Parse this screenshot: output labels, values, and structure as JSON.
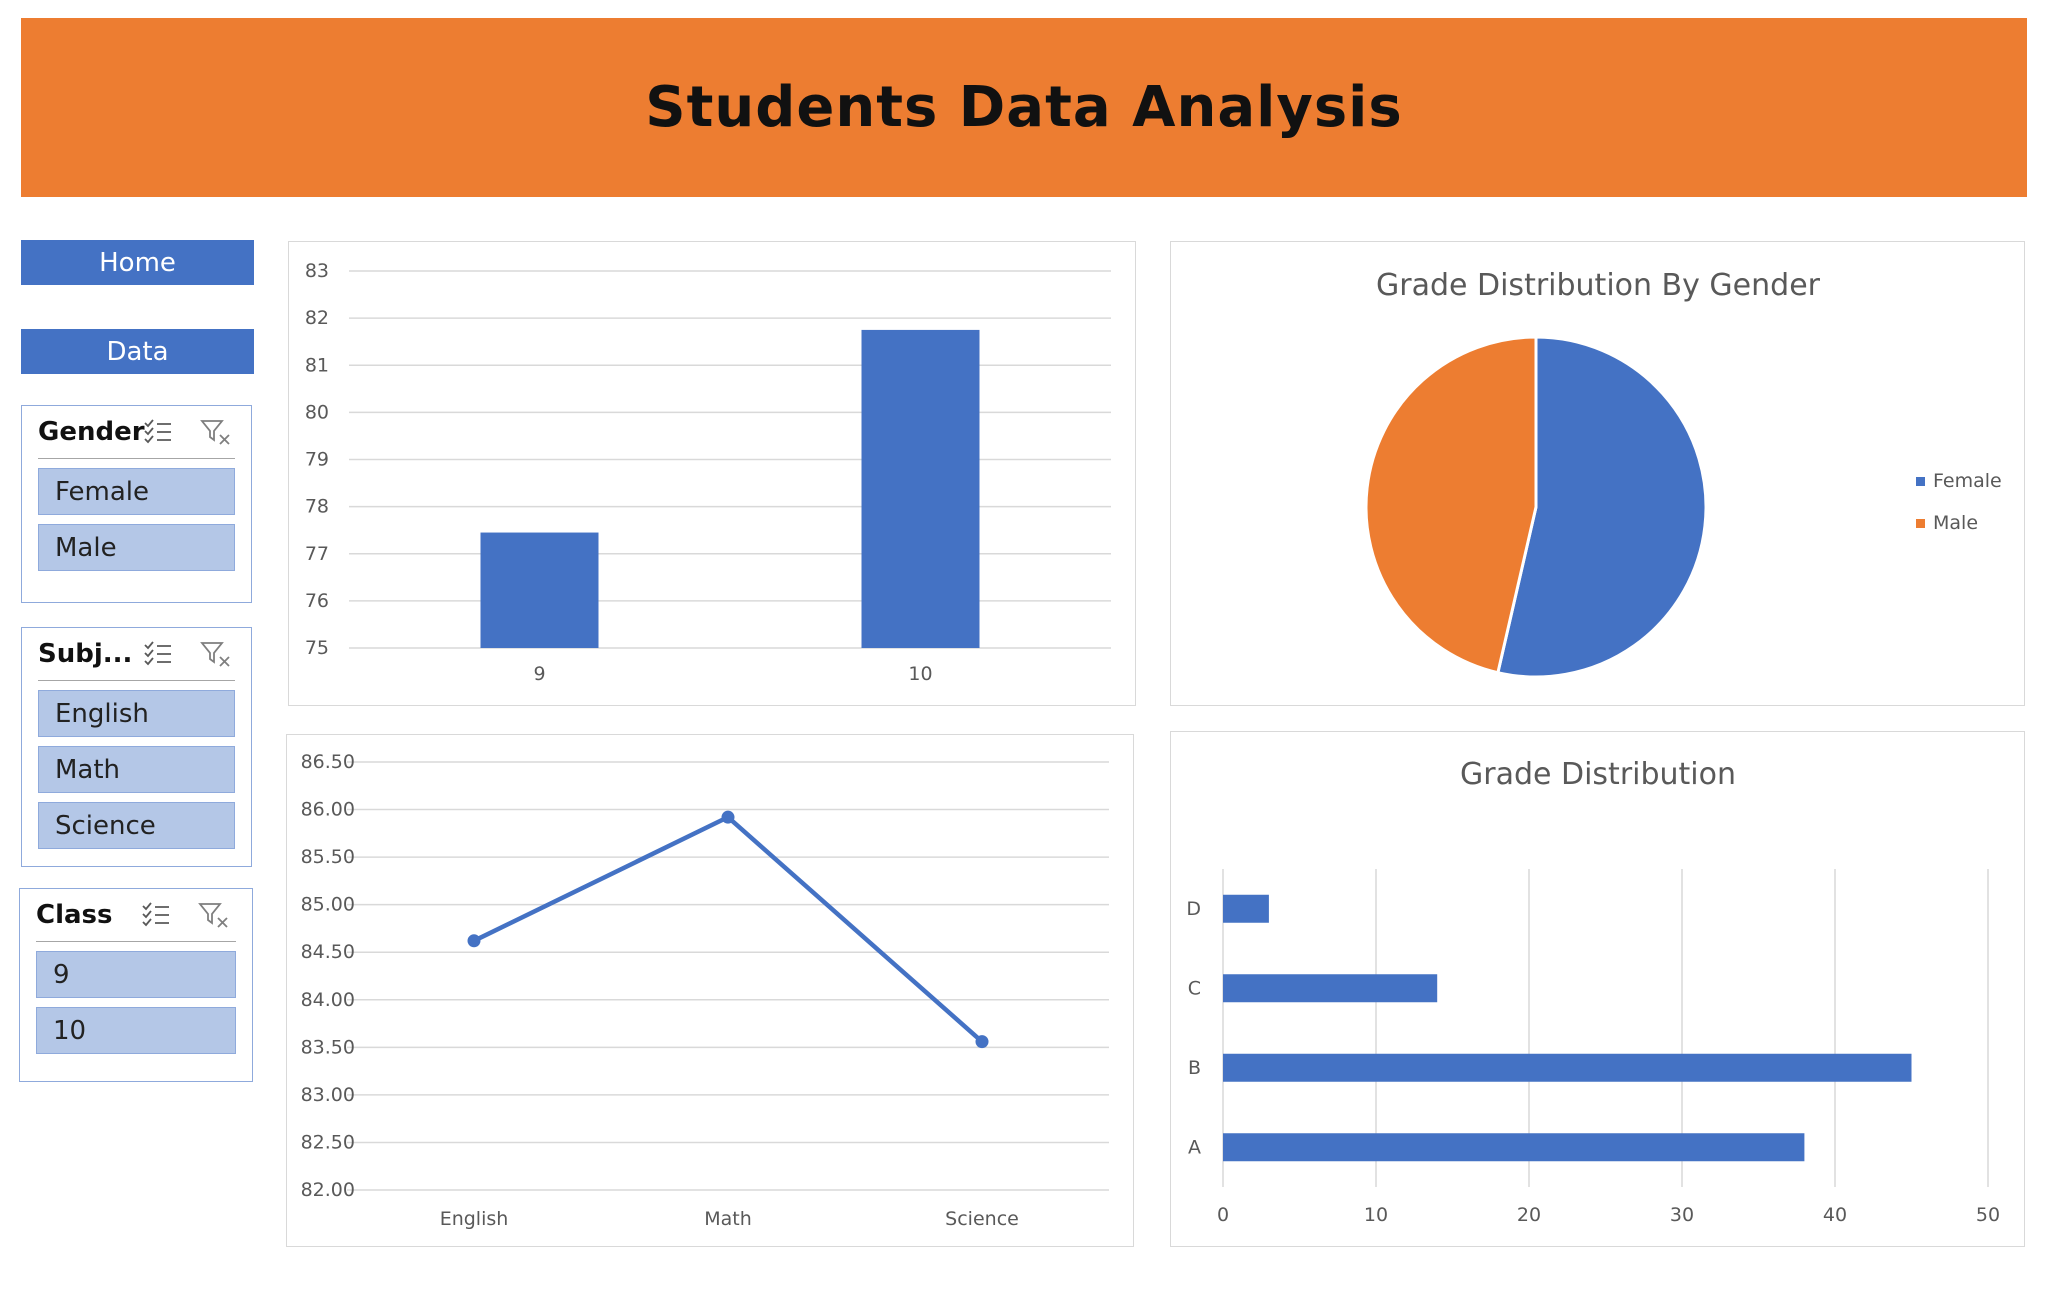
{
  "header": {
    "title": "Students Data Analysis"
  },
  "nav": {
    "home_label": "Home",
    "data_label": "Data"
  },
  "slicers": [
    {
      "title": "Gender",
      "items": [
        "Female",
        "Male"
      ]
    },
    {
      "title": "Subj...",
      "items": [
        "English",
        "Math",
        "Science"
      ]
    },
    {
      "title": "Class",
      "items": [
        "9",
        "10"
      ]
    }
  ],
  "colors": {
    "accent": "#ED7D31",
    "primary": "#4472C4",
    "slicer_item": "#B4C7E7"
  },
  "chart_data": [
    {
      "id": "class_bar",
      "type": "bar",
      "title": "",
      "categories": [
        "9",
        "10"
      ],
      "values": [
        77.45,
        81.75
      ],
      "ylim": [
        75,
        83
      ],
      "yticks": [
        "75",
        "76",
        "77",
        "78",
        "79",
        "80",
        "81",
        "82",
        "83"
      ],
      "grid": true
    },
    {
      "id": "gender_pie",
      "type": "pie",
      "title": "Grade Distribution By Gender",
      "labels": [
        "Female",
        "Male"
      ],
      "values": [
        53.6,
        46.4
      ],
      "colors": [
        "#4472C4",
        "#ED7D31"
      ],
      "legend": "right"
    },
    {
      "id": "subject_line",
      "type": "line",
      "title": "",
      "categories": [
        "English",
        "Math",
        "Science"
      ],
      "values": [
        84.62,
        85.92,
        83.56
      ],
      "ylim": [
        82,
        86.5
      ],
      "yticks": [
        "82.00",
        "82.50",
        "83.00",
        "83.50",
        "84.00",
        "84.50",
        "85.00",
        "85.50",
        "86.00",
        "86.50"
      ],
      "grid": true
    },
    {
      "id": "grade_hbar",
      "type": "bar",
      "orientation": "horizontal",
      "title": "Grade Distribution",
      "categories": [
        "A",
        "B",
        "C",
        "D"
      ],
      "values": [
        38,
        45,
        14,
        3
      ],
      "xlim": [
        0,
        50
      ],
      "xticks": [
        "0",
        "10",
        "20",
        "30",
        "40",
        "50"
      ],
      "grid": true
    }
  ]
}
